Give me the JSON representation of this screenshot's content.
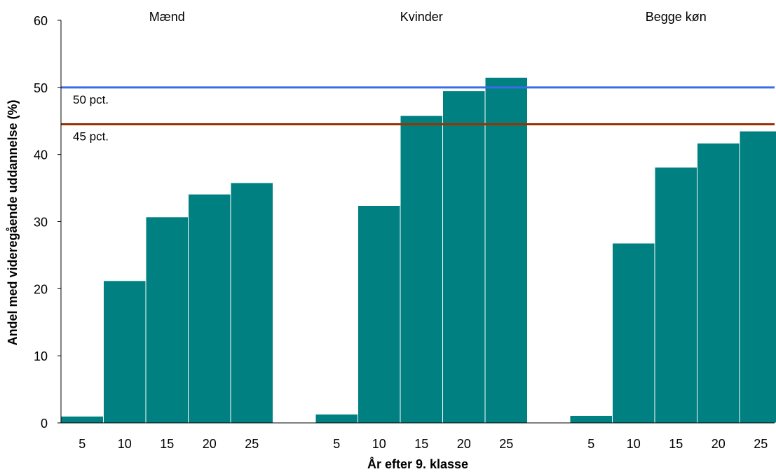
{
  "chart_data": {
    "type": "bar",
    "xlabel": "År efter 9. klasse",
    "ylabel": "Andel med videregående uddannelse (%)",
    "ylim": [
      0,
      60
    ],
    "yticks": [
      "0",
      "10",
      "20",
      "30",
      "40",
      "50",
      "60"
    ],
    "categories": [
      "5",
      "10",
      "15",
      "20",
      "25"
    ],
    "groups": [
      {
        "name": "Mænd",
        "values": [
          1.0,
          21.2,
          30.7,
          34.1,
          35.8
        ]
      },
      {
        "name": "Kvinder",
        "values": [
          1.3,
          32.4,
          45.8,
          49.5,
          51.5
        ]
      },
      {
        "name": "Begge køn",
        "values": [
          1.1,
          26.8,
          38.1,
          41.7,
          43.5
        ]
      }
    ],
    "reference_lines": [
      {
        "label": "50 pct.",
        "value": 50,
        "color": "#3a6ee8"
      },
      {
        "label": "45 pct.",
        "value": 44.5,
        "color": "#993300"
      }
    ],
    "bar_color": "#008080",
    "grid": false
  }
}
